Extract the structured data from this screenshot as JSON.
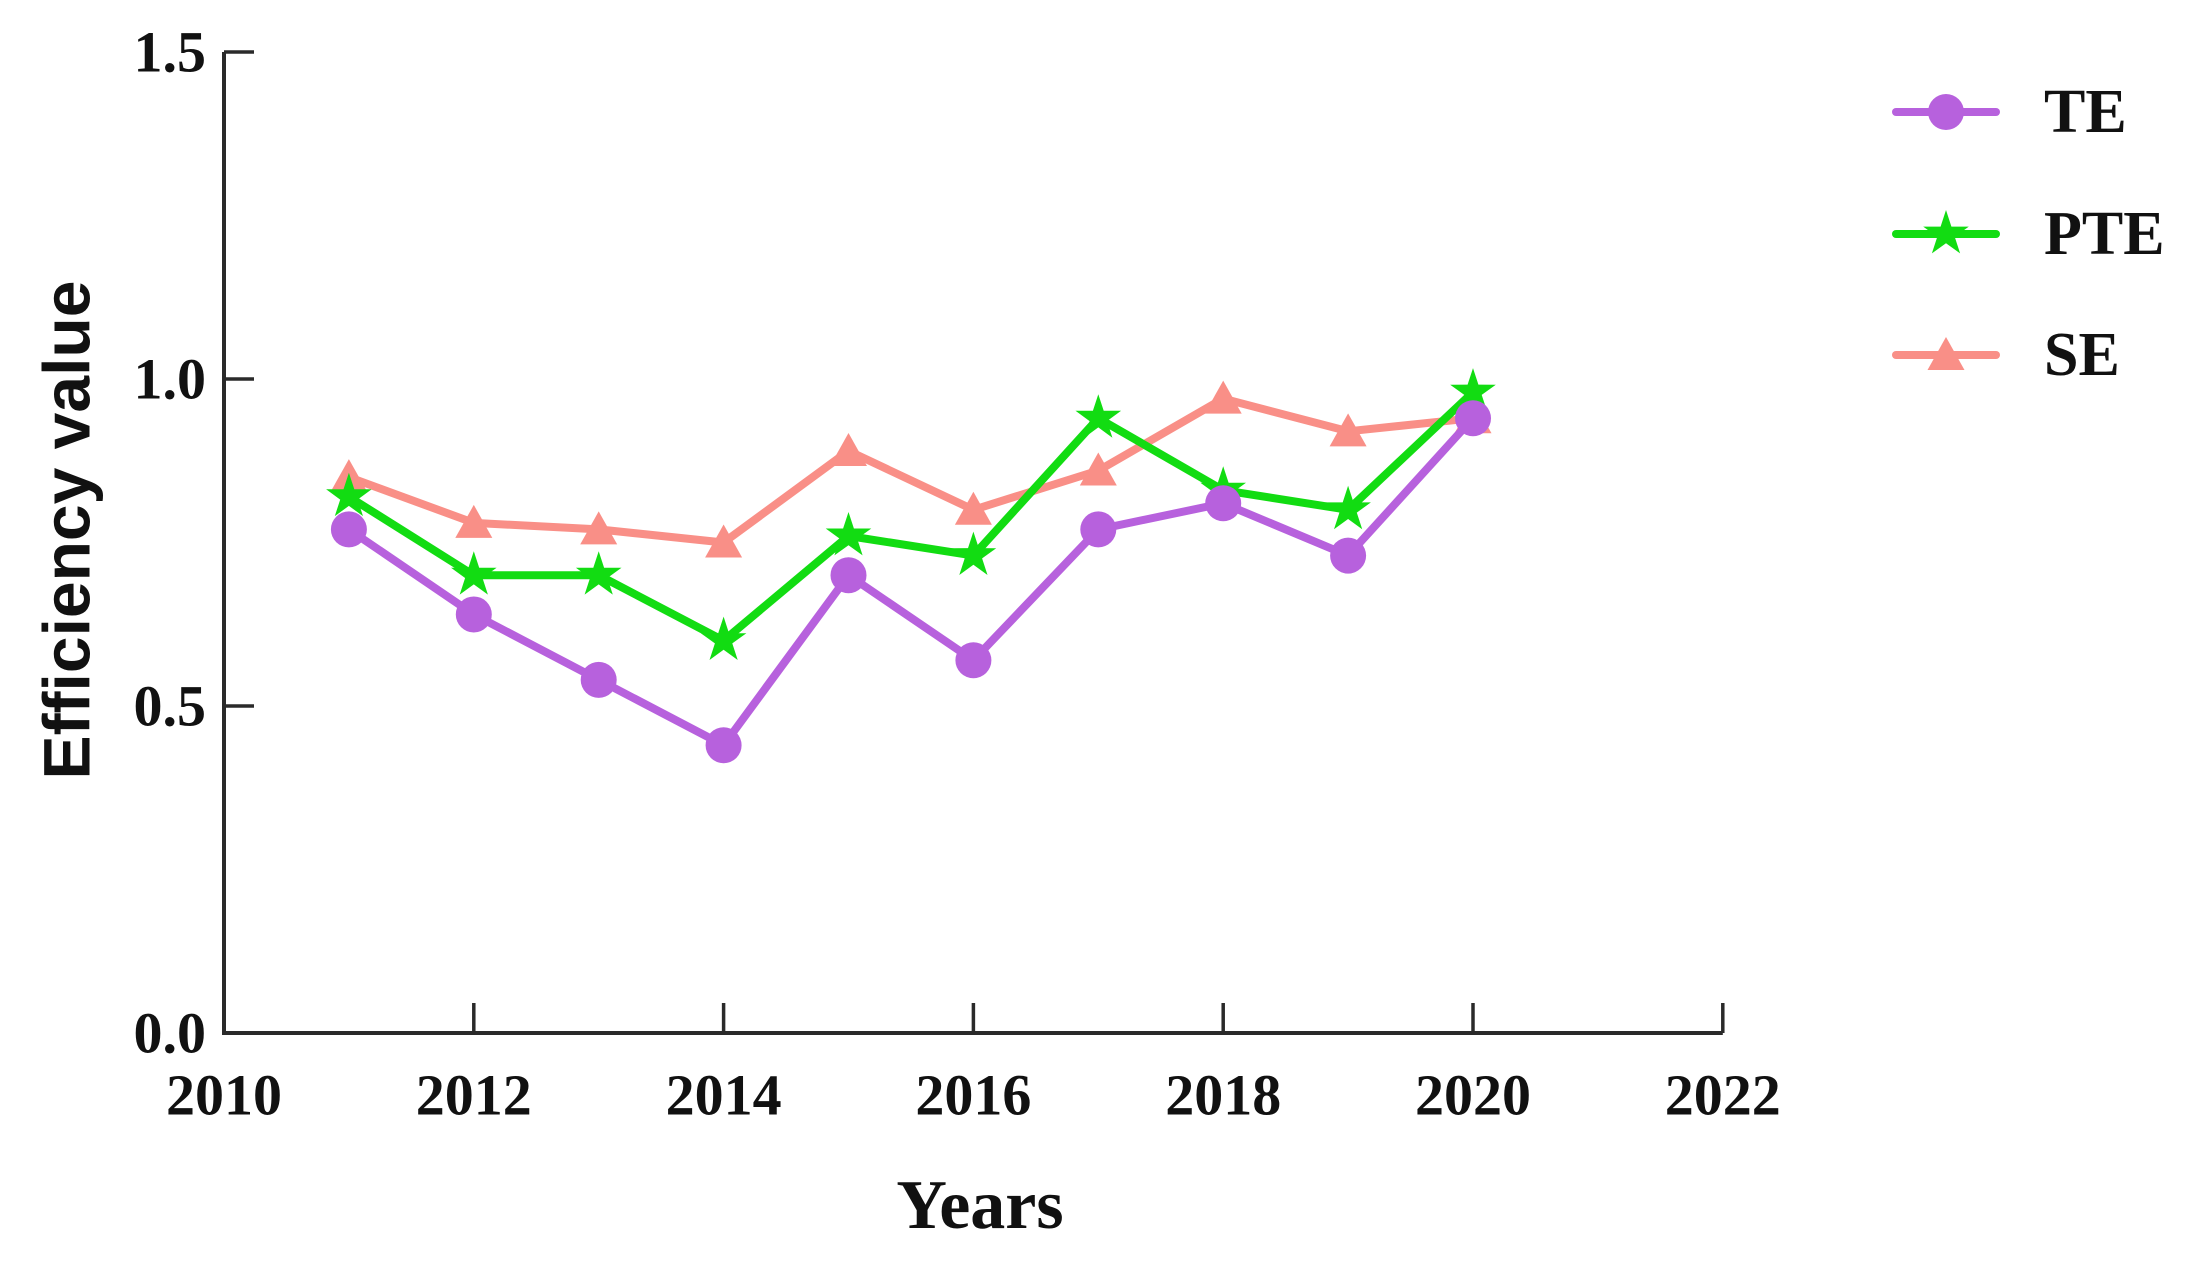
{
  "chart_data": {
    "type": "line",
    "title": "",
    "xlabel": "Years",
    "ylabel": "Efficiency value",
    "x": [
      2011,
      2012,
      2013,
      2014,
      2015,
      2016,
      2017,
      2018,
      2019,
      2020
    ],
    "series": [
      {
        "name": "TE",
        "marker": "circle",
        "color": "#b761dd",
        "values": [
          0.77,
          0.64,
          0.54,
          0.44,
          0.7,
          0.57,
          0.77,
          0.81,
          0.73,
          0.94
        ]
      },
      {
        "name": "PTE",
        "marker": "star",
        "color": "#12dc12",
        "values": [
          0.82,
          0.7,
          0.7,
          0.6,
          0.76,
          0.73,
          0.94,
          0.83,
          0.8,
          0.98
        ]
      },
      {
        "name": "SE",
        "marker": "triangle",
        "color": "#f98f87",
        "values": [
          0.85,
          0.78,
          0.77,
          0.75,
          0.89,
          0.8,
          0.86,
          0.97,
          0.92,
          0.94
        ]
      }
    ],
    "x_ticks": {
      "values": [
        2010,
        2012,
        2014,
        2016,
        2018,
        2020,
        2022
      ],
      "labels": [
        "2010",
        "2012",
        "2014",
        "2016",
        "2018",
        "2020",
        "2022"
      ]
    },
    "y_ticks": {
      "values": [
        0,
        0.5,
        1.0,
        1.5
      ],
      "labels": [
        "0.0",
        "0.5",
        "1.0",
        "1.5"
      ]
    },
    "xlim": [
      2010,
      2022
    ],
    "ylim": [
      0.0,
      1.5
    ],
    "grid": false,
    "legend": {
      "position": "right-outside",
      "entries": [
        "TE",
        "PTE",
        "SE"
      ]
    },
    "axis_color": "#2a2a2a",
    "background": "#ffffff"
  }
}
